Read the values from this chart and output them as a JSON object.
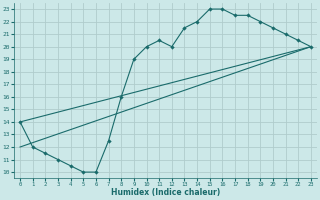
{
  "title": "",
  "xlabel": "Humidex (Indice chaleur)",
  "xlim": [
    -0.5,
    23.5
  ],
  "ylim": [
    9.5,
    23.5
  ],
  "yticks": [
    10,
    11,
    12,
    13,
    14,
    15,
    16,
    17,
    18,
    19,
    20,
    21,
    22,
    23
  ],
  "xticks": [
    0,
    1,
    2,
    3,
    4,
    5,
    6,
    7,
    8,
    9,
    10,
    11,
    12,
    13,
    14,
    15,
    16,
    17,
    18,
    19,
    20,
    21,
    22,
    23
  ],
  "bg_color": "#cce8e8",
  "grid_color": "#b0cccc",
  "line_color": "#1a6b6b",
  "line1_x": [
    0,
    1,
    2,
    3,
    4,
    5,
    6,
    7,
    8,
    9,
    10,
    11,
    12,
    13,
    14,
    15,
    16,
    17,
    18,
    19,
    20,
    21,
    22,
    23
  ],
  "line1_y": [
    14,
    12,
    11.5,
    11,
    10.5,
    10,
    10,
    12.5,
    16,
    19,
    20,
    20.5,
    20,
    21.5,
    22,
    23,
    23,
    22.5,
    22.5,
    22,
    21.5,
    21,
    20.5,
    20
  ],
  "line2_x": [
    0,
    23
  ],
  "line2_y": [
    14,
    20
  ],
  "line3_x": [
    0,
    23
  ],
  "line3_y": [
    12,
    20
  ]
}
